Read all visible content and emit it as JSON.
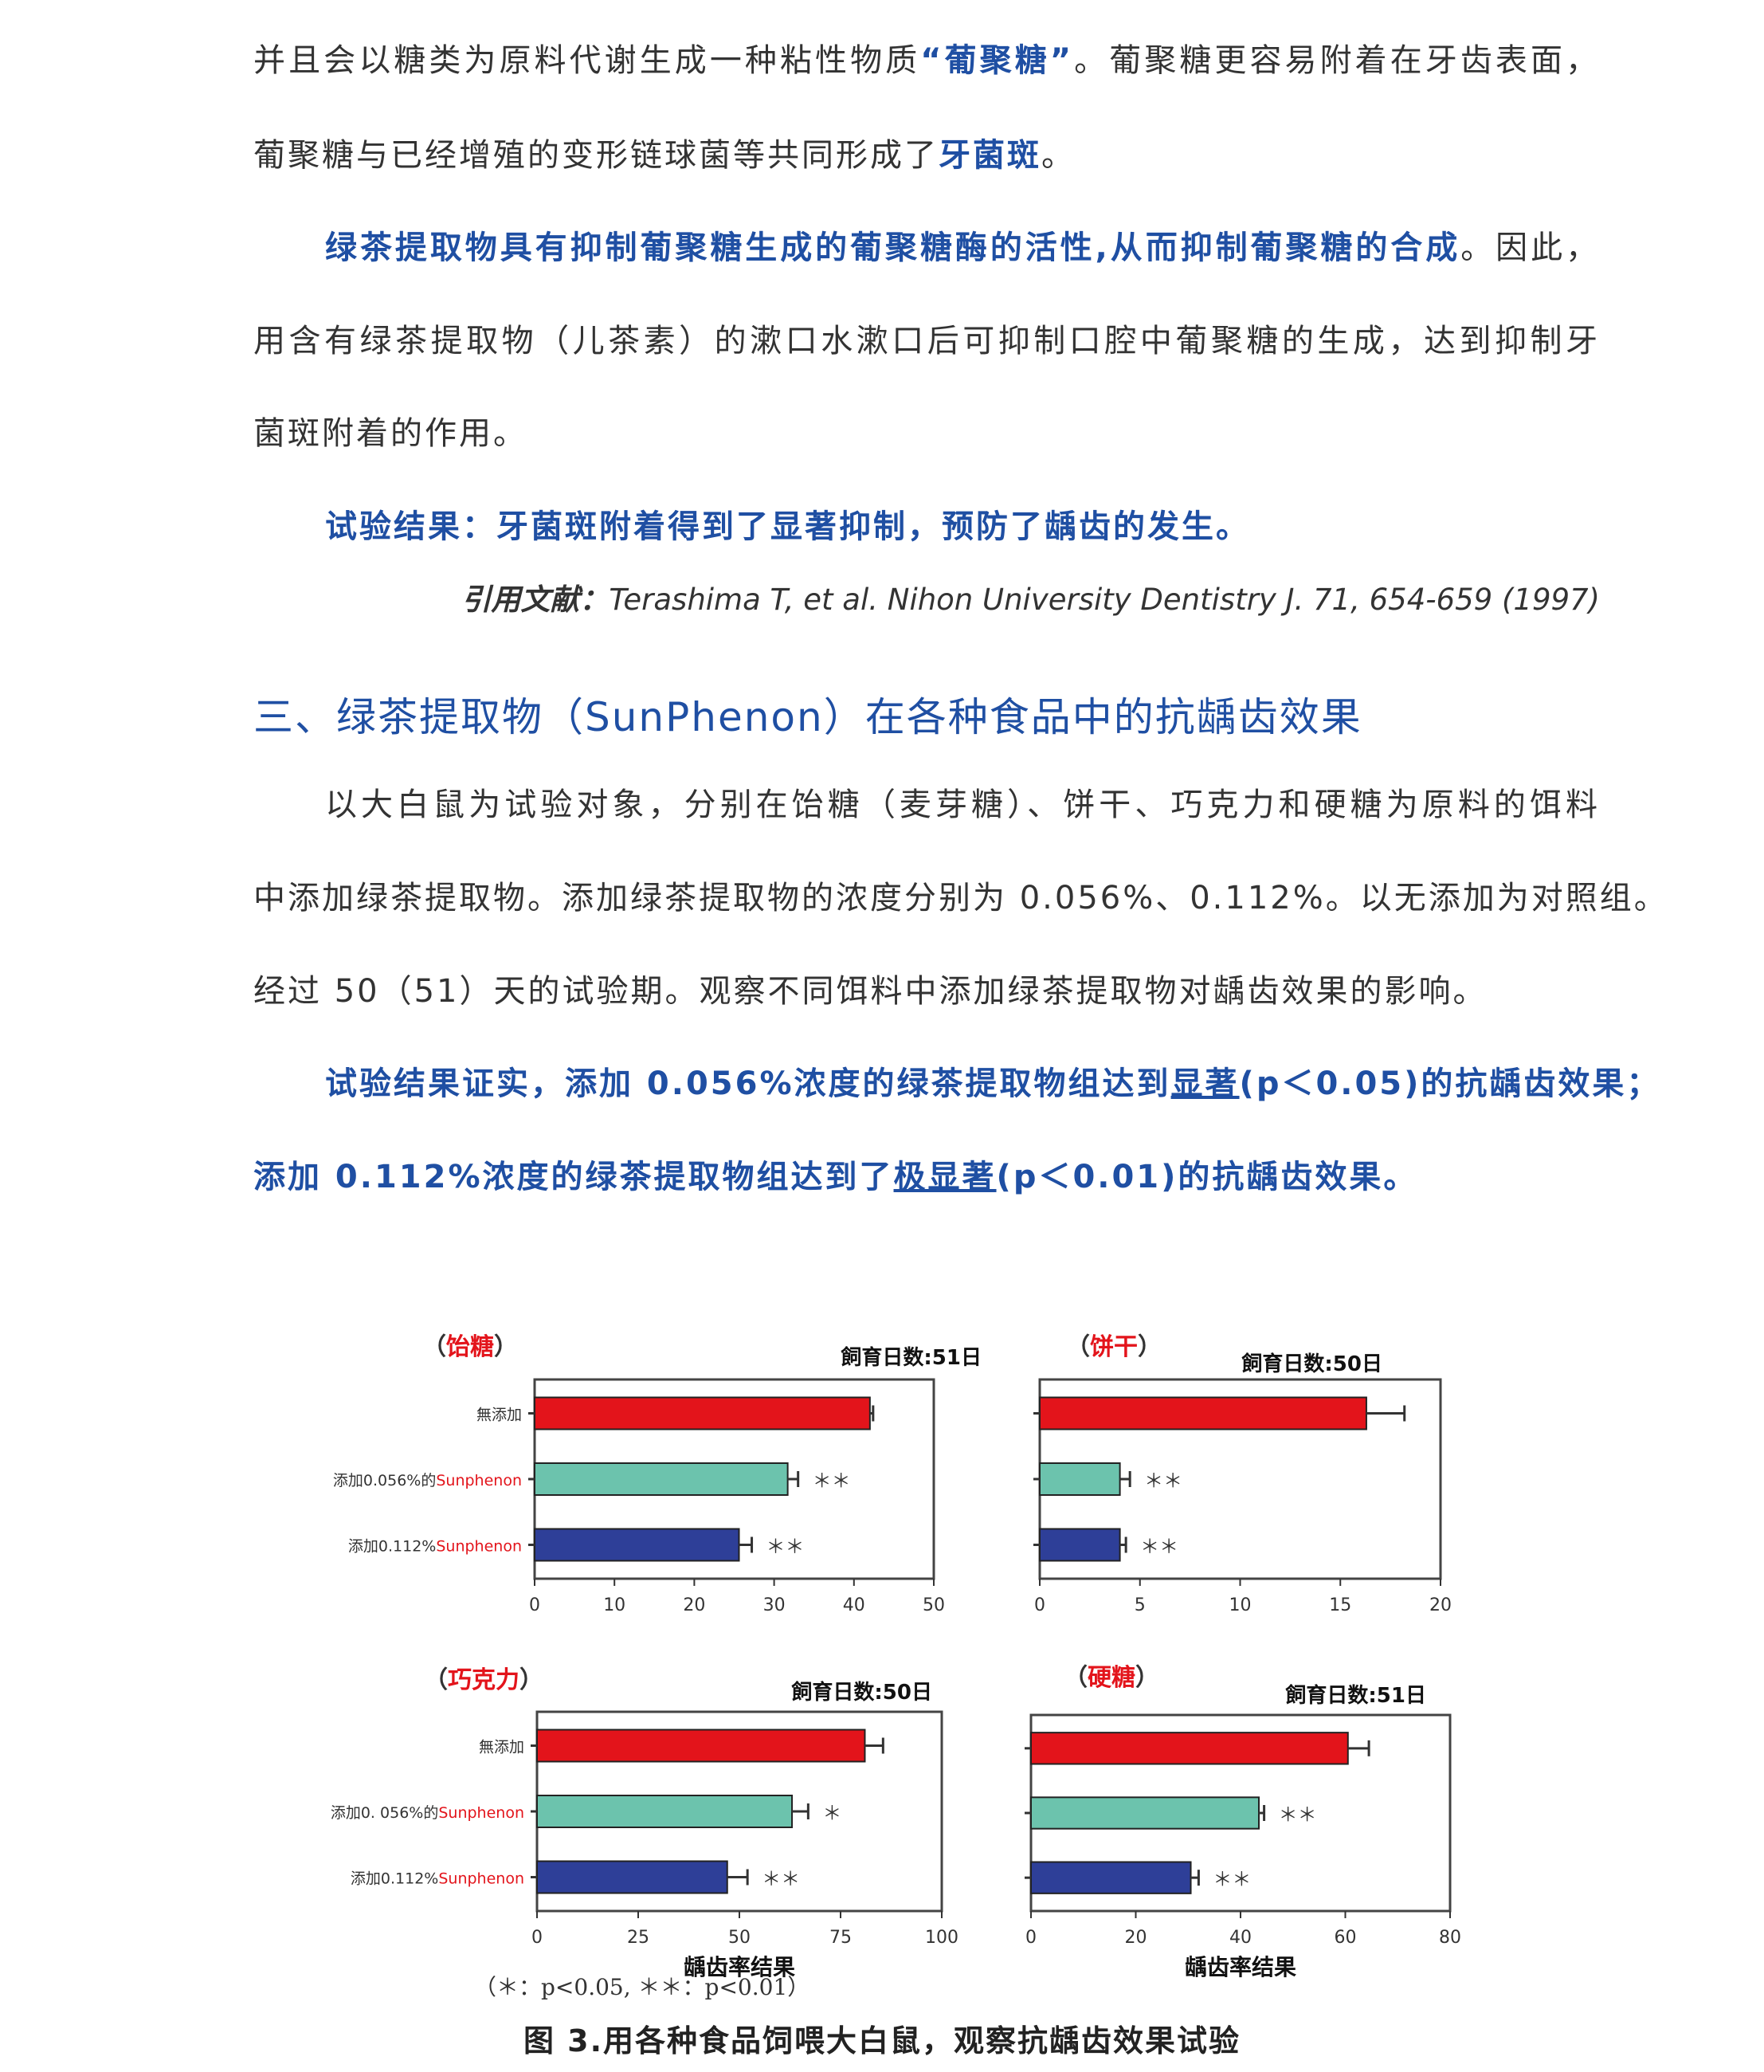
{
  "paragraphs": [
    {
      "segments": [
        {
          "text": "并且会以糖类为原料代谢生成一种粘性物质"
        },
        {
          "text": "“葡聚糖”",
          "style": "blue"
        },
        {
          "text": "。葡聚糖更容易附着在牙齿表面，"
        }
      ]
    },
    {
      "segments": [
        {
          "text": "葡聚糖与已经增殖的变形链球菌等共同形成了"
        },
        {
          "text": "牙菌斑",
          "style": "blue"
        },
        {
          "text": "。"
        }
      ]
    },
    {
      "segments": [
        {
          "text": "绿茶提取物具有抑制葡聚糖生成的葡聚糖酶的活性,从而抑制葡聚糖的合成",
          "style": "blue"
        },
        {
          "text": "。因此，"
        }
      ]
    },
    {
      "segments": [
        {
          "text": "用含有绿茶提取物（儿茶素）的漱口水漱口后可抑制口腔中葡聚糖的生成，达到抑制牙"
        }
      ]
    },
    {
      "segments": [
        {
          "text": "菌斑附着的作用。"
        }
      ]
    },
    {
      "segments": [
        {
          "text": "试验结果：牙菌斑附着得到了显著抑制，预防了龋齿的发生。",
          "style": "blue"
        }
      ]
    },
    {
      "segments": [
        {
          "text": "以大白鼠为试验对象，分别在饴糖（麦芽糖）、饼干、巧克力和硬糖为原料的饵料"
        }
      ]
    },
    {
      "segments": [
        {
          "text": "中添加绿茶提取物。添加绿茶提取物的浓度分别为 0.056%、0.112%。以无添加为对照组。"
        }
      ]
    },
    {
      "segments": [
        {
          "text": "经过 50（51）天的试验期。观察不同饵料中添加绿茶提取物对龋齿效果的影响。"
        }
      ]
    },
    {
      "segments": [
        {
          "text": "试验结果证实，添加 0.056%浓度的绿茶提取物组达到",
          "style": "blue"
        },
        {
          "text": "显著",
          "style": "blue ul"
        },
        {
          "text": "(p＜0.05)的抗龋齿效果；",
          "style": "blue"
        }
      ]
    },
    {
      "segments": [
        {
          "text": "添加 0.112%浓度的绿茶提取物组达到了",
          "style": "blue"
        },
        {
          "text": "极显著",
          "style": "blue ul"
        },
        {
          "text": "(p＜0.01)的抗龋齿效果。",
          "style": "blue"
        }
      ]
    }
  ],
  "citation": {
    "label": "引用文献：",
    "text": "Terashima T, et al. Nihon University Dentistry J. 71, 654-659 (1997)"
  },
  "section_heading": "三、绿茶提取物（SunPhenon）在各种食品中的抗龋齿效果",
  "colors": {
    "control": "#e3141b",
    "low": "#6cc3ad",
    "high": "#2e3f98",
    "title_red": "#e3141b",
    "text_blue": "#1f4fa3"
  },
  "chart_data": [
    {
      "type": "bar",
      "orientation": "horizontal",
      "title": "饴糖",
      "subtitle": "飼育日数:51日",
      "categories": [
        "無添加",
        "添加0.056%的Sunphenon",
        "添加0.112%Sunphenon"
      ],
      "values": [
        42,
        31.7,
        25.6
      ],
      "errors": [
        0.4,
        1.3,
        1.6
      ],
      "significance": [
        "",
        "＊＊",
        "＊＊"
      ],
      "xlim": [
        0,
        50
      ],
      "xticks": [
        0,
        10,
        20,
        30,
        40,
        50
      ],
      "xlabel": ""
    },
    {
      "type": "bar",
      "orientation": "horizontal",
      "title": "饼干",
      "subtitle": "飼育日数:50日",
      "categories": [
        "",
        "",
        ""
      ],
      "values": [
        16.3,
        4.0,
        4.0
      ],
      "errors": [
        1.9,
        0.5,
        0.3
      ],
      "significance": [
        "",
        "＊＊",
        "＊＊"
      ],
      "xlim": [
        0,
        20
      ],
      "xticks": [
        0,
        5,
        10,
        15,
        20
      ],
      "xlabel": ""
    },
    {
      "type": "bar",
      "orientation": "horizontal",
      "title": "巧克力",
      "subtitle": "飼育日数:50日",
      "categories": [
        "無添加",
        "添加0. 056%的Sunphenon",
        "添加0.112%Sunphenon"
      ],
      "values": [
        81,
        63,
        47
      ],
      "errors": [
        4.5,
        4,
        5
      ],
      "significance": [
        "",
        "＊",
        "＊＊"
      ],
      "xlim": [
        0,
        100
      ],
      "xticks": [
        0,
        25,
        50,
        75,
        100
      ],
      "xlabel": "龋齿率结果"
    },
    {
      "type": "bar",
      "orientation": "horizontal",
      "title": "硬糖",
      "subtitle": "飼育日数:51日",
      "categories": [
        "",
        "",
        ""
      ],
      "values": [
        60.5,
        43.5,
        30.5
      ],
      "errors": [
        4,
        1,
        1.5
      ],
      "significance": [
        "",
        "＊＊",
        "＊＊"
      ],
      "xlim": [
        0,
        80
      ],
      "xticks": [
        0,
        20,
        40,
        60,
        80
      ],
      "xlabel": "龋齿率结果"
    }
  ],
  "footnote": "（＊：p<0.05,  ＊＊：p<0.01）",
  "caption": "图 3.用各种食品饲喂大白鼠，观察抗龋齿效果试验"
}
